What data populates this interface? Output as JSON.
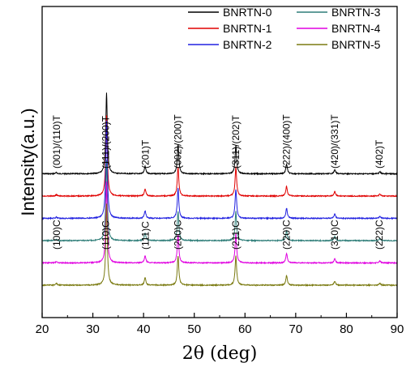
{
  "chart_data": {
    "type": "line",
    "xlabel": "2θ (deg)",
    "ylabel": "Intensity(a.u.)",
    "xlim": [
      20,
      90
    ],
    "x_ticks": [
      "20",
      "30",
      "40",
      "50",
      "60",
      "70",
      "80",
      "90"
    ],
    "y_ticks": "none",
    "grid": false,
    "legend_position": "top-right",
    "series": [
      {
        "name": "BNRTN-0",
        "color": "#000000",
        "baseline_level": 5,
        "peaks": [
          {
            "x": 22.8,
            "height": 0.15
          },
          {
            "x": 32.7,
            "height": 10
          },
          {
            "x": 40.3,
            "height": 0.9
          },
          {
            "x": 46.8,
            "height": 3.6
          },
          {
            "x": 58.2,
            "height": 3.5
          },
          {
            "x": 68.2,
            "height": 1.2
          },
          {
            "x": 77.7,
            "height": 0.5
          },
          {
            "x": 86.6,
            "height": 0.25
          }
        ]
      },
      {
        "name": "BNRTN-1",
        "color": "#e00000",
        "baseline_level": 4,
        "peaks": [
          {
            "x": 22.8,
            "height": 0.15
          },
          {
            "x": 32.7,
            "height": 10
          },
          {
            "x": 40.3,
            "height": 0.9
          },
          {
            "x": 46.8,
            "height": 3.6
          },
          {
            "x": 58.2,
            "height": 3.6
          },
          {
            "x": 68.2,
            "height": 1.2
          },
          {
            "x": 77.7,
            "height": 0.55
          },
          {
            "x": 86.6,
            "height": 0.25
          }
        ]
      },
      {
        "name": "BNRTN-2",
        "color": "#2020e0",
        "baseline_level": 3,
        "peaks": [
          {
            "x": 22.8,
            "height": 0.15
          },
          {
            "x": 32.7,
            "height": 12
          },
          {
            "x": 40.3,
            "height": 0.95
          },
          {
            "x": 46.8,
            "height": 3.7
          },
          {
            "x": 58.2,
            "height": 3.6
          },
          {
            "x": 68.2,
            "height": 1.25
          },
          {
            "x": 77.7,
            "height": 0.55
          },
          {
            "x": 86.6,
            "height": 0.25
          }
        ]
      },
      {
        "name": "BNRTN-3",
        "color": "#2e7d78",
        "baseline_level": 2,
        "peaks": [
          {
            "x": 22.8,
            "height": 0.15
          },
          {
            "x": 32.7,
            "height": 10
          },
          {
            "x": 40.3,
            "height": 0.95
          },
          {
            "x": 46.8,
            "height": 3.6
          },
          {
            "x": 58.2,
            "height": 3.6
          },
          {
            "x": 68.2,
            "height": 1.2
          },
          {
            "x": 77.7,
            "height": 0.5
          },
          {
            "x": 86.6,
            "height": 0.25
          }
        ]
      },
      {
        "name": "BNRTN-4",
        "color": "#e000e0",
        "baseline_level": 1,
        "peaks": [
          {
            "x": 22.8,
            "height": 0.15
          },
          {
            "x": 32.7,
            "height": 10
          },
          {
            "x": 40.3,
            "height": 0.9
          },
          {
            "x": 46.8,
            "height": 3.6
          },
          {
            "x": 58.2,
            "height": 3.6
          },
          {
            "x": 68.2,
            "height": 1.2
          },
          {
            "x": 77.7,
            "height": 0.5
          },
          {
            "x": 86.6,
            "height": 0.25
          }
        ]
      },
      {
        "name": "BNRTN-5",
        "color": "#7a7a10",
        "baseline_level": 0,
        "peaks": [
          {
            "x": 22.8,
            "height": 0.25
          },
          {
            "x": 32.7,
            "height": 10
          },
          {
            "x": 40.3,
            "height": 0.95
          },
          {
            "x": 46.8,
            "height": 3.6
          },
          {
            "x": 58.2,
            "height": 3.6
          },
          {
            "x": 68.2,
            "height": 1.2
          },
          {
            "x": 77.7,
            "height": 0.5
          },
          {
            "x": 86.6,
            "height": 0.25
          }
        ]
      }
    ],
    "annotations_tetragonal": [
      {
        "x": 23.5,
        "text": "(001)/(110)T"
      },
      {
        "x": 33.2,
        "text": "(111)/(200)T"
      },
      {
        "x": 41.0,
        "text": "(201)T"
      },
      {
        "x": 47.4,
        "text": "(002)/(200)T"
      },
      {
        "x": 58.8,
        "text": "(311)/(202)T"
      },
      {
        "x": 68.8,
        "text": "(222)/(400)T"
      },
      {
        "x": 78.3,
        "text": "(420)/(331)T"
      },
      {
        "x": 87.1,
        "text": "(402)T"
      }
    ],
    "annotations_cubic": [
      {
        "x": 23.5,
        "text": "(100)C"
      },
      {
        "x": 33.2,
        "text": "(110)C"
      },
      {
        "x": 41.0,
        "text": "(111)C"
      },
      {
        "x": 47.4,
        "text": "(200)C"
      },
      {
        "x": 58.8,
        "text": "(211)C"
      },
      {
        "x": 68.8,
        "text": "(220)C"
      },
      {
        "x": 78.3,
        "text": "(310)C"
      },
      {
        "x": 87.1,
        "text": "(222)C"
      }
    ]
  }
}
